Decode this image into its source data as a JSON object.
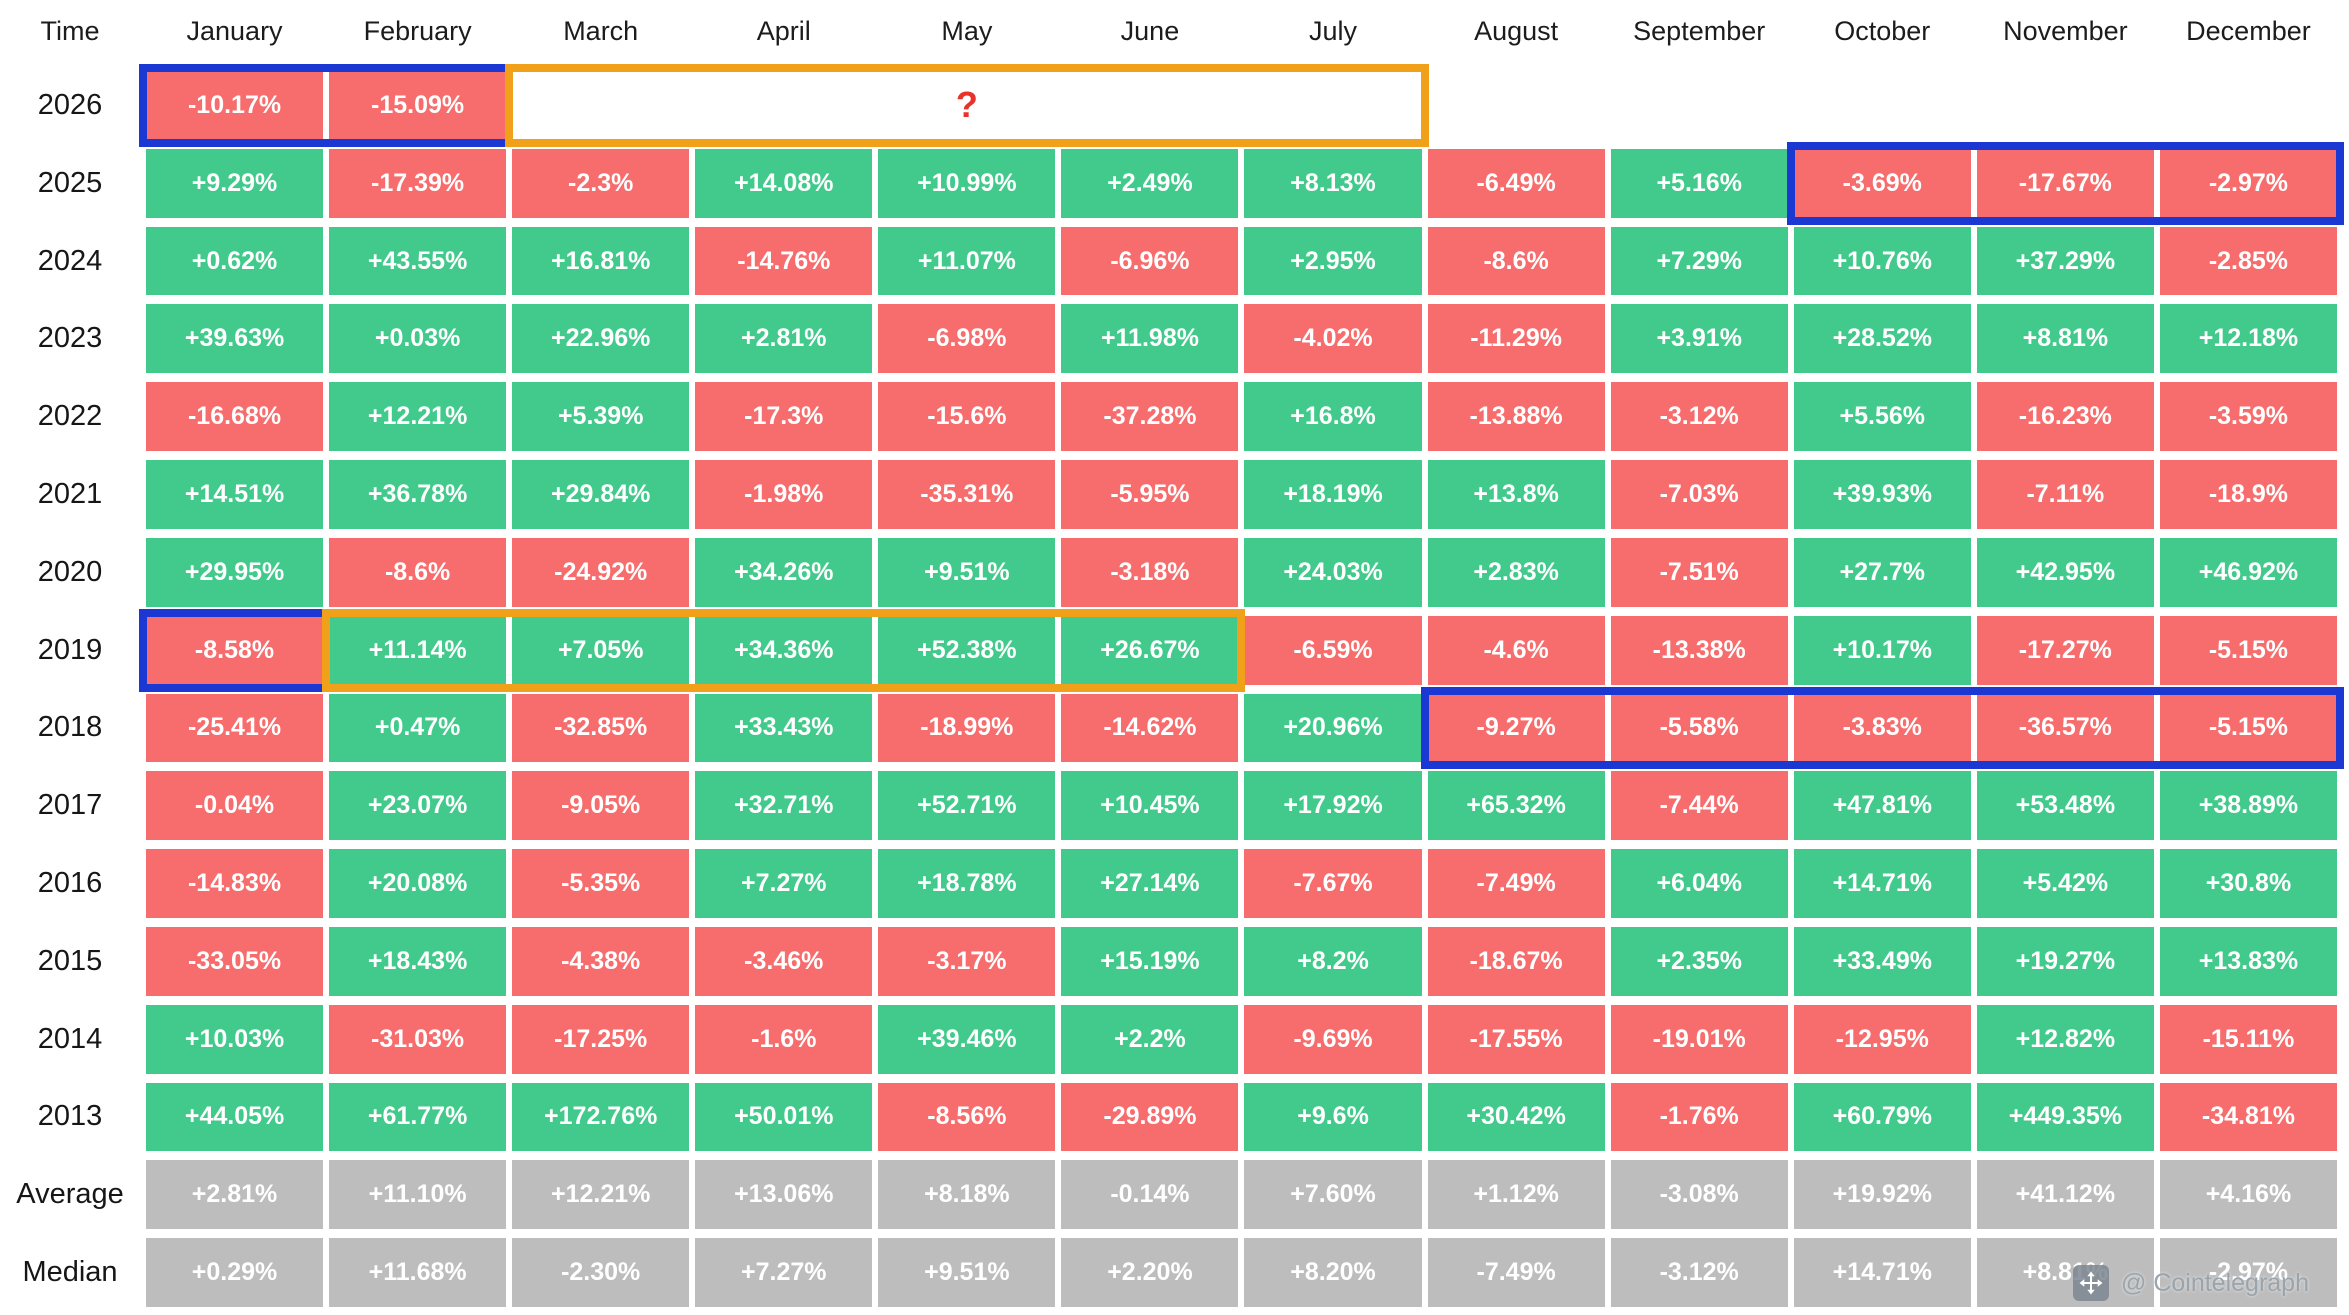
{
  "watermark": {
    "label": "@ Cointelegraph",
    "icon": "move-icon"
  },
  "colors": {
    "positive": "#42ca8c",
    "negative": "#f76c6c",
    "neutral": "#bdbdbd",
    "annotation_blue": "#1c38d2",
    "annotation_orange": "#f1a019",
    "question_mark_red": "#e8322a"
  },
  "annotations": [
    {
      "shape": "box",
      "color": "blue",
      "row": "2026",
      "col_start": 1,
      "col_end": 2,
      "label": ""
    },
    {
      "shape": "box",
      "color": "orange",
      "row": "2026",
      "col_start": 3,
      "col_end": 7,
      "label": "?"
    },
    {
      "shape": "box",
      "color": "blue",
      "row": "2025",
      "col_start": 10,
      "col_end": 12,
      "label": ""
    },
    {
      "shape": "box",
      "color": "blue",
      "row": "2019",
      "col_start": 1,
      "col_end": 1,
      "label": ""
    },
    {
      "shape": "box",
      "color": "orange",
      "row": "2019",
      "col_start": 2,
      "col_end": 6,
      "label": ""
    },
    {
      "shape": "box",
      "color": "blue",
      "row": "2018",
      "col_start": 8,
      "col_end": 12,
      "label": ""
    }
  ],
  "chart_data": {
    "type": "heatmap",
    "corner_label": "Time",
    "columns": [
      "January",
      "February",
      "March",
      "April",
      "May",
      "June",
      "July",
      "August",
      "September",
      "October",
      "November",
      "December"
    ],
    "rows": [
      {
        "label": "2026",
        "values": [
          "-10.17%",
          "-15.09%",
          null,
          null,
          null,
          null,
          null,
          null,
          null,
          null,
          null,
          null
        ]
      },
      {
        "label": "2025",
        "values": [
          "+9.29%",
          "-17.39%",
          "-2.3%",
          "+14.08%",
          "+10.99%",
          "+2.49%",
          "+8.13%",
          "-6.49%",
          "+5.16%",
          "-3.69%",
          "-17.67%",
          "-2.97%"
        ]
      },
      {
        "label": "2024",
        "values": [
          "+0.62%",
          "+43.55%",
          "+16.81%",
          "-14.76%",
          "+11.07%",
          "-6.96%",
          "+2.95%",
          "-8.6%",
          "+7.29%",
          "+10.76%",
          "+37.29%",
          "-2.85%"
        ]
      },
      {
        "label": "2023",
        "values": [
          "+39.63%",
          "+0.03%",
          "+22.96%",
          "+2.81%",
          "-6.98%",
          "+11.98%",
          "-4.02%",
          "-11.29%",
          "+3.91%",
          "+28.52%",
          "+8.81%",
          "+12.18%"
        ]
      },
      {
        "label": "2022",
        "values": [
          "-16.68%",
          "+12.21%",
          "+5.39%",
          "-17.3%",
          "-15.6%",
          "-37.28%",
          "+16.8%",
          "-13.88%",
          "-3.12%",
          "+5.56%",
          "-16.23%",
          "-3.59%"
        ]
      },
      {
        "label": "2021",
        "values": [
          "+14.51%",
          "+36.78%",
          "+29.84%",
          "-1.98%",
          "-35.31%",
          "-5.95%",
          "+18.19%",
          "+13.8%",
          "-7.03%",
          "+39.93%",
          "-7.11%",
          "-18.9%"
        ]
      },
      {
        "label": "2020",
        "values": [
          "+29.95%",
          "-8.6%",
          "-24.92%",
          "+34.26%",
          "+9.51%",
          "-3.18%",
          "+24.03%",
          "+2.83%",
          "-7.51%",
          "+27.7%",
          "+42.95%",
          "+46.92%"
        ]
      },
      {
        "label": "2019",
        "values": [
          "-8.58%",
          "+11.14%",
          "+7.05%",
          "+34.36%",
          "+52.38%",
          "+26.67%",
          "-6.59%",
          "-4.6%",
          "-13.38%",
          "+10.17%",
          "-17.27%",
          "-5.15%"
        ]
      },
      {
        "label": "2018",
        "values": [
          "-25.41%",
          "+0.47%",
          "-32.85%",
          "+33.43%",
          "-18.99%",
          "-14.62%",
          "+20.96%",
          "-9.27%",
          "-5.58%",
          "-3.83%",
          "-36.57%",
          "-5.15%"
        ]
      },
      {
        "label": "2017",
        "values": [
          "-0.04%",
          "+23.07%",
          "-9.05%",
          "+32.71%",
          "+52.71%",
          "+10.45%",
          "+17.92%",
          "+65.32%",
          "-7.44%",
          "+47.81%",
          "+53.48%",
          "+38.89%"
        ]
      },
      {
        "label": "2016",
        "values": [
          "-14.83%",
          "+20.08%",
          "-5.35%",
          "+7.27%",
          "+18.78%",
          "+27.14%",
          "-7.67%",
          "-7.49%",
          "+6.04%",
          "+14.71%",
          "+5.42%",
          "+30.8%"
        ]
      },
      {
        "label": "2015",
        "values": [
          "-33.05%",
          "+18.43%",
          "-4.38%",
          "-3.46%",
          "-3.17%",
          "+15.19%",
          "+8.2%",
          "-18.67%",
          "+2.35%",
          "+33.49%",
          "+19.27%",
          "+13.83%"
        ]
      },
      {
        "label": "2014",
        "values": [
          "+10.03%",
          "-31.03%",
          "-17.25%",
          "-1.6%",
          "+39.46%",
          "+2.2%",
          "-9.69%",
          "-17.55%",
          "-19.01%",
          "-12.95%",
          "+12.82%",
          "-15.11%"
        ]
      },
      {
        "label": "2013",
        "values": [
          "+44.05%",
          "+61.77%",
          "+172.76%",
          "+50.01%",
          "-8.56%",
          "-29.89%",
          "+9.6%",
          "+30.42%",
          "-1.76%",
          "+60.79%",
          "+449.35%",
          "-34.81%"
        ]
      },
      {
        "label": "Average",
        "style": "neutral",
        "values": [
          "+2.81%",
          "+11.10%",
          "+12.21%",
          "+13.06%",
          "+8.18%",
          "-0.14%",
          "+7.60%",
          "+1.12%",
          "-3.08%",
          "+19.92%",
          "+41.12%",
          "+4.16%"
        ]
      },
      {
        "label": "Median",
        "style": "neutral",
        "values": [
          "+0.29%",
          "+11.68%",
          "-2.30%",
          "+7.27%",
          "+9.51%",
          "+2.20%",
          "+8.20%",
          "-7.49%",
          "-3.12%",
          "+14.71%",
          "+8.81%",
          "-2.97%"
        ]
      }
    ],
    "legend": {
      "positive_cells": "green",
      "negative_cells": "red",
      "summary_row_cells": "gray"
    }
  }
}
